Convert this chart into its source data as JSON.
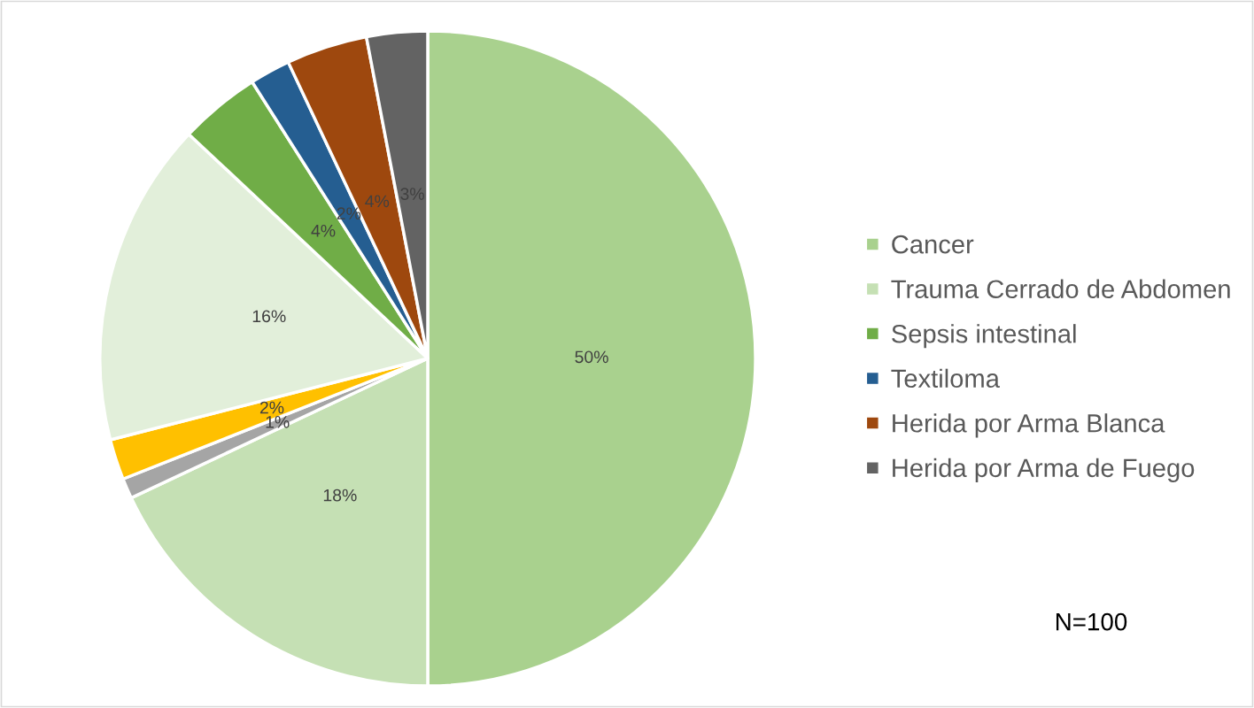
{
  "chart_data": {
    "type": "pie",
    "categories": [
      "Cancer",
      "Trauma Cerrado de Abdomen",
      null,
      null,
      null,
      "Sepsis intestinal",
      "Textiloma",
      "Herida por Arma Blanca",
      "Herida por Arma de Fuego"
    ],
    "values": [
      50,
      18,
      1,
      2,
      16,
      4,
      2,
      4,
      3
    ],
    "colors": [
      "#a9d18e",
      "#c5e0b4",
      "#a5a5a5",
      "#ffc000",
      "#e2efda",
      "#70ad47",
      "#255e91",
      "#9e480e",
      "#636363"
    ],
    "value_labels": [
      "50%",
      "18%",
      "1%",
      "2%",
      "16%",
      "4%",
      "2%",
      "4%",
      "3%"
    ],
    "legend": "right",
    "annotations": [
      "N=100"
    ]
  }
}
